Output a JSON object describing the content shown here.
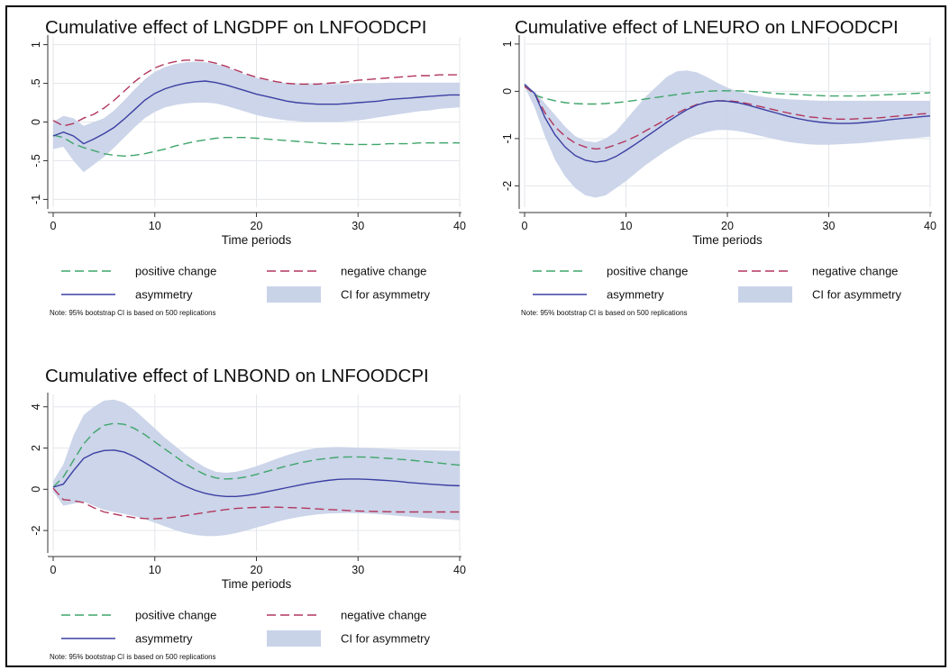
{
  "chart_data": [
    {
      "type": "line",
      "title": "Cumulative effect of LNGDPF on LNFOODCPI",
      "xlabel": "Time periods",
      "ylabel": "",
      "xlim": [
        0,
        40
      ],
      "ylim": [
        -1.1,
        1.1
      ],
      "xticks": [
        "0",
        "10",
        "20",
        "30",
        "40"
      ],
      "yticks": [
        {
          "v": 1,
          "t": "1"
        },
        {
          "v": 0.5,
          "t": ".5"
        },
        {
          "v": 0,
          "t": "0"
        },
        {
          "v": -0.5,
          "t": "-.5"
        },
        {
          "v": -1,
          "t": "-1"
        }
      ],
      "grid": true,
      "legend_position": "bottom",
      "legend": [
        "positive change",
        "negative change",
        "asymmetry",
        "CI for asymmetry"
      ],
      "note": "Note: 95% bootstrap CI is based on 500 replications",
      "x": [
        0,
        1,
        2,
        3,
        4,
        5,
        6,
        7,
        8,
        9,
        10,
        11,
        12,
        13,
        14,
        15,
        16,
        17,
        18,
        19,
        20,
        21,
        22,
        23,
        24,
        25,
        26,
        27,
        28,
        29,
        30,
        31,
        32,
        33,
        34,
        35,
        36,
        37,
        38,
        39,
        40
      ],
      "series": [
        {
          "name": "positive change",
          "style": "dash",
          "color": "#3fa56b",
          "values": [
            -0.17,
            -0.2,
            -0.28,
            -0.33,
            -0.37,
            -0.41,
            -0.43,
            -0.44,
            -0.43,
            -0.41,
            -0.38,
            -0.35,
            -0.31,
            -0.28,
            -0.25,
            -0.23,
            -0.21,
            -0.2,
            -0.2,
            -0.2,
            -0.21,
            -0.22,
            -0.23,
            -0.24,
            -0.25,
            -0.26,
            -0.27,
            -0.28,
            -0.28,
            -0.29,
            -0.29,
            -0.29,
            -0.29,
            -0.28,
            -0.28,
            -0.28,
            -0.27,
            -0.27,
            -0.27,
            -0.27,
            -0.27
          ]
        },
        {
          "name": "negative change",
          "style": "dash",
          "color": "#b2365e",
          "values": [
            0.02,
            -0.05,
            -0.02,
            0.05,
            0.1,
            0.18,
            0.28,
            0.4,
            0.52,
            0.62,
            0.7,
            0.75,
            0.78,
            0.8,
            0.8,
            0.79,
            0.76,
            0.72,
            0.67,
            0.62,
            0.58,
            0.55,
            0.52,
            0.5,
            0.49,
            0.49,
            0.49,
            0.5,
            0.51,
            0.52,
            0.54,
            0.55,
            0.56,
            0.57,
            0.58,
            0.59,
            0.6,
            0.6,
            0.61,
            0.61,
            0.61
          ]
        },
        {
          "name": "asymmetry",
          "style": "solid",
          "color": "#3c3fa3",
          "values": [
            -0.18,
            -0.13,
            -0.18,
            -0.28,
            -0.22,
            -0.15,
            -0.07,
            0.04,
            0.16,
            0.28,
            0.37,
            0.43,
            0.47,
            0.5,
            0.52,
            0.53,
            0.51,
            0.48,
            0.44,
            0.4,
            0.36,
            0.33,
            0.3,
            0.27,
            0.25,
            0.24,
            0.23,
            0.23,
            0.23,
            0.24,
            0.25,
            0.26,
            0.27,
            0.29,
            0.3,
            0.31,
            0.32,
            0.33,
            0.34,
            0.35,
            0.35
          ]
        },
        {
          "name": "CI for asymmetry",
          "type": "band",
          "color": "#c9d3e8",
          "upper": [
            0.0,
            0.08,
            0.05,
            -0.05,
            0.0,
            0.05,
            0.15,
            0.28,
            0.42,
            0.55,
            0.65,
            0.71,
            0.75,
            0.77,
            0.78,
            0.77,
            0.75,
            0.71,
            0.66,
            0.61,
            0.57,
            0.54,
            0.52,
            0.5,
            0.49,
            0.49,
            0.49,
            0.49,
            0.49,
            0.49,
            0.5,
            0.5,
            0.5,
            0.51,
            0.51,
            0.51,
            0.51,
            0.51,
            0.51,
            0.51,
            0.51
          ],
          "lower": [
            -0.35,
            -0.32,
            -0.5,
            -0.65,
            -0.55,
            -0.45,
            -0.33,
            -0.2,
            -0.07,
            0.05,
            0.13,
            0.19,
            0.22,
            0.24,
            0.25,
            0.25,
            0.24,
            0.21,
            0.17,
            0.13,
            0.09,
            0.06,
            0.04,
            0.02,
            0.01,
            0.0,
            0.0,
            0.0,
            0.0,
            0.01,
            0.02,
            0.04,
            0.06,
            0.08,
            0.1,
            0.12,
            0.14,
            0.15,
            0.17,
            0.18,
            0.19
          ]
        }
      ]
    },
    {
      "type": "line",
      "title": "Cumulative effect of LNEURO on LNFOODCPI",
      "xlabel": "Time periods",
      "ylabel": "",
      "xlim": [
        0,
        40
      ],
      "ylim": [
        -2.45,
        1.15
      ],
      "xticks": [
        "0",
        "10",
        "20",
        "30",
        "40"
      ],
      "yticks": [
        {
          "v": 1,
          "t": "1"
        },
        {
          "v": 0,
          "t": "0"
        },
        {
          "v": -1,
          "t": "-1"
        },
        {
          "v": -2,
          "t": "-2"
        }
      ],
      "grid": true,
      "legend_position": "bottom",
      "legend": [
        "positive change",
        "negative change",
        "asymmetry",
        "CI for asymmetry"
      ],
      "note": "Note: 95% bootstrap CI is based on 500 replications",
      "x": [
        0,
        1,
        2,
        3,
        4,
        5,
        6,
        7,
        8,
        9,
        10,
        11,
        12,
        13,
        14,
        15,
        16,
        17,
        18,
        19,
        20,
        21,
        22,
        23,
        24,
        25,
        26,
        27,
        28,
        29,
        30,
        31,
        32,
        33,
        34,
        35,
        36,
        37,
        38,
        39,
        40
      ],
      "series": [
        {
          "name": "positive change",
          "style": "dash",
          "color": "#3fa56b",
          "values": [
            0.12,
            -0.08,
            -0.15,
            -0.2,
            -0.24,
            -0.26,
            -0.27,
            -0.27,
            -0.26,
            -0.24,
            -0.22,
            -0.19,
            -0.16,
            -0.13,
            -0.1,
            -0.07,
            -0.04,
            -0.02,
            0.0,
            0.01,
            0.01,
            0.01,
            0.0,
            -0.01,
            -0.03,
            -0.05,
            -0.06,
            -0.07,
            -0.08,
            -0.09,
            -0.1,
            -0.1,
            -0.1,
            -0.1,
            -0.09,
            -0.08,
            -0.07,
            -0.06,
            -0.05,
            -0.04,
            -0.03
          ]
        },
        {
          "name": "negative change",
          "style": "dash",
          "color": "#b2365e",
          "values": [
            0.1,
            -0.05,
            -0.45,
            -0.75,
            -0.95,
            -1.1,
            -1.18,
            -1.22,
            -1.2,
            -1.13,
            -1.05,
            -0.95,
            -0.83,
            -0.71,
            -0.59,
            -0.47,
            -0.36,
            -0.28,
            -0.23,
            -0.2,
            -0.2,
            -0.22,
            -0.26,
            -0.31,
            -0.36,
            -0.41,
            -0.46,
            -0.5,
            -0.54,
            -0.56,
            -0.58,
            -0.59,
            -0.59,
            -0.58,
            -0.57,
            -0.56,
            -0.54,
            -0.52,
            -0.5,
            -0.48,
            -0.47
          ]
        },
        {
          "name": "asymmetry",
          "style": "solid",
          "color": "#3c3fa3",
          "values": [
            0.15,
            -0.05,
            -0.55,
            -0.92,
            -1.18,
            -1.36,
            -1.46,
            -1.5,
            -1.47,
            -1.38,
            -1.25,
            -1.11,
            -0.96,
            -0.81,
            -0.66,
            -0.52,
            -0.39,
            -0.29,
            -0.23,
            -0.2,
            -0.21,
            -0.24,
            -0.29,
            -0.35,
            -0.41,
            -0.47,
            -0.53,
            -0.58,
            -0.62,
            -0.65,
            -0.67,
            -0.68,
            -0.68,
            -0.67,
            -0.65,
            -0.63,
            -0.6,
            -0.58,
            -0.56,
            -0.54,
            -0.52
          ]
        },
        {
          "name": "CI for asymmetry",
          "type": "band",
          "color": "#c9d3e8",
          "upper": [
            0.1,
            0.0,
            -0.25,
            -0.5,
            -0.75,
            -0.95,
            -1.05,
            -1.08,
            -1.0,
            -0.85,
            -0.6,
            -0.35,
            -0.1,
            0.1,
            0.3,
            0.42,
            0.44,
            0.4,
            0.3,
            0.18,
            0.08,
            0.0,
            -0.05,
            -0.1,
            -0.13,
            -0.15,
            -0.17,
            -0.18,
            -0.19,
            -0.2,
            -0.2,
            -0.2,
            -0.2,
            -0.2,
            -0.2,
            -0.2,
            -0.2,
            -0.2,
            -0.2,
            -0.2,
            -0.2
          ]
        },
        {
          "name": "CI for asymmetry (lower)",
          "type": "band-lower",
          "color": "#c9d3e8",
          "lower": [
            0.1,
            -0.35,
            -0.95,
            -1.45,
            -1.8,
            -2.05,
            -2.2,
            -2.25,
            -2.2,
            -2.05,
            -1.9,
            -1.72,
            -1.55,
            -1.4,
            -1.25,
            -1.12,
            -1.0,
            -0.92,
            -0.86,
            -0.82,
            -0.82,
            -0.84,
            -0.88,
            -0.93,
            -0.98,
            -1.03,
            -1.07,
            -1.1,
            -1.12,
            -1.13,
            -1.13,
            -1.12,
            -1.11,
            -1.1,
            -1.08,
            -1.06,
            -1.04,
            -1.02,
            -1.0,
            -0.98,
            -0.96
          ]
        }
      ]
    },
    {
      "type": "line",
      "title": "Cumulative effect of LNBOND on LNFOODCPI",
      "xlabel": "Time periods",
      "ylabel": "",
      "xlim": [
        0,
        40
      ],
      "ylim": [
        -3.0,
        4.6
      ],
      "xticks": [
        "0",
        "10",
        "20",
        "30",
        "40"
      ],
      "yticks": [
        {
          "v": 4,
          "t": "4"
        },
        {
          "v": 2,
          "t": "2"
        },
        {
          "v": 0,
          "t": "0"
        },
        {
          "v": -2,
          "t": "-2"
        }
      ],
      "grid": true,
      "legend_position": "bottom",
      "legend": [
        "positive change",
        "negative change",
        "asymmetry",
        "CI for asymmetry"
      ],
      "note": "Note: 95% bootstrap CI is based on 500 replications",
      "x": [
        0,
        1,
        2,
        3,
        4,
        5,
        6,
        7,
        8,
        9,
        10,
        11,
        12,
        13,
        14,
        15,
        16,
        17,
        18,
        19,
        20,
        21,
        22,
        23,
        24,
        25,
        26,
        27,
        28,
        29,
        30,
        31,
        32,
        33,
        34,
        35,
        36,
        37,
        38,
        39,
        40
      ],
      "series": [
        {
          "name": "positive change",
          "style": "dash",
          "color": "#3fa56b",
          "values": [
            0.1,
            0.6,
            1.4,
            2.2,
            2.75,
            3.1,
            3.2,
            3.15,
            2.95,
            2.65,
            2.3,
            1.95,
            1.6,
            1.25,
            0.95,
            0.7,
            0.55,
            0.5,
            0.52,
            0.6,
            0.72,
            0.86,
            1.0,
            1.13,
            1.25,
            1.35,
            1.44,
            1.5,
            1.55,
            1.57,
            1.57,
            1.56,
            1.53,
            1.5,
            1.46,
            1.42,
            1.37,
            1.32,
            1.27,
            1.22,
            1.17
          ]
        },
        {
          "name": "negative change",
          "style": "dash",
          "color": "#b2365e",
          "values": [
            0.05,
            -0.5,
            -0.55,
            -0.65,
            -0.9,
            -1.1,
            -1.2,
            -1.3,
            -1.38,
            -1.42,
            -1.43,
            -1.4,
            -1.35,
            -1.28,
            -1.2,
            -1.12,
            -1.05,
            -0.98,
            -0.93,
            -0.9,
            -0.88,
            -0.87,
            -0.87,
            -0.88,
            -0.9,
            -0.92,
            -0.95,
            -0.98,
            -1.0,
            -1.03,
            -1.05,
            -1.07,
            -1.08,
            -1.09,
            -1.1,
            -1.1,
            -1.1,
            -1.1,
            -1.1,
            -1.1,
            -1.1
          ]
        },
        {
          "name": "asymmetry",
          "style": "solid",
          "color": "#3c3fa3",
          "values": [
            0.1,
            0.25,
            0.9,
            1.5,
            1.75,
            1.88,
            1.9,
            1.8,
            1.58,
            1.3,
            1.0,
            0.7,
            0.4,
            0.15,
            -0.05,
            -0.2,
            -0.3,
            -0.35,
            -0.35,
            -0.3,
            -0.22,
            -0.12,
            -0.02,
            0.08,
            0.18,
            0.28,
            0.36,
            0.43,
            0.48,
            0.5,
            0.5,
            0.48,
            0.45,
            0.42,
            0.38,
            0.33,
            0.29,
            0.25,
            0.22,
            0.19,
            0.17
          ]
        },
        {
          "name": "CI for asymmetry",
          "type": "band",
          "color": "#c9d3e8",
          "upper": [
            0.4,
            1.2,
            2.6,
            3.6,
            4.0,
            4.3,
            4.35,
            4.2,
            3.85,
            3.4,
            2.95,
            2.5,
            2.1,
            1.7,
            1.35,
            1.05,
            0.85,
            0.8,
            0.85,
            0.97,
            1.12,
            1.3,
            1.48,
            1.65,
            1.8,
            1.92,
            2.0,
            2.04,
            2.05,
            2.04,
            2.02,
            2.0,
            1.98,
            1.96,
            1.94,
            1.92,
            1.9,
            1.89,
            1.88,
            1.87,
            1.86
          ]
        },
        {
          "name": "CI for asymmetry (lower)",
          "type": "band-lower",
          "color": "#c9d3e8",
          "lower": [
            -0.1,
            -0.8,
            -0.7,
            -0.6,
            -0.8,
            -1.0,
            -1.1,
            -1.2,
            -1.3,
            -1.45,
            -1.62,
            -1.8,
            -1.98,
            -2.12,
            -2.22,
            -2.27,
            -2.27,
            -2.22,
            -2.12,
            -2.0,
            -1.86,
            -1.72,
            -1.58,
            -1.46,
            -1.36,
            -1.28,
            -1.22,
            -1.18,
            -1.16,
            -1.15,
            -1.16,
            -1.18,
            -1.21,
            -1.25,
            -1.29,
            -1.33,
            -1.37,
            -1.41,
            -1.44,
            -1.47,
            -1.5
          ]
        }
      ]
    }
  ]
}
